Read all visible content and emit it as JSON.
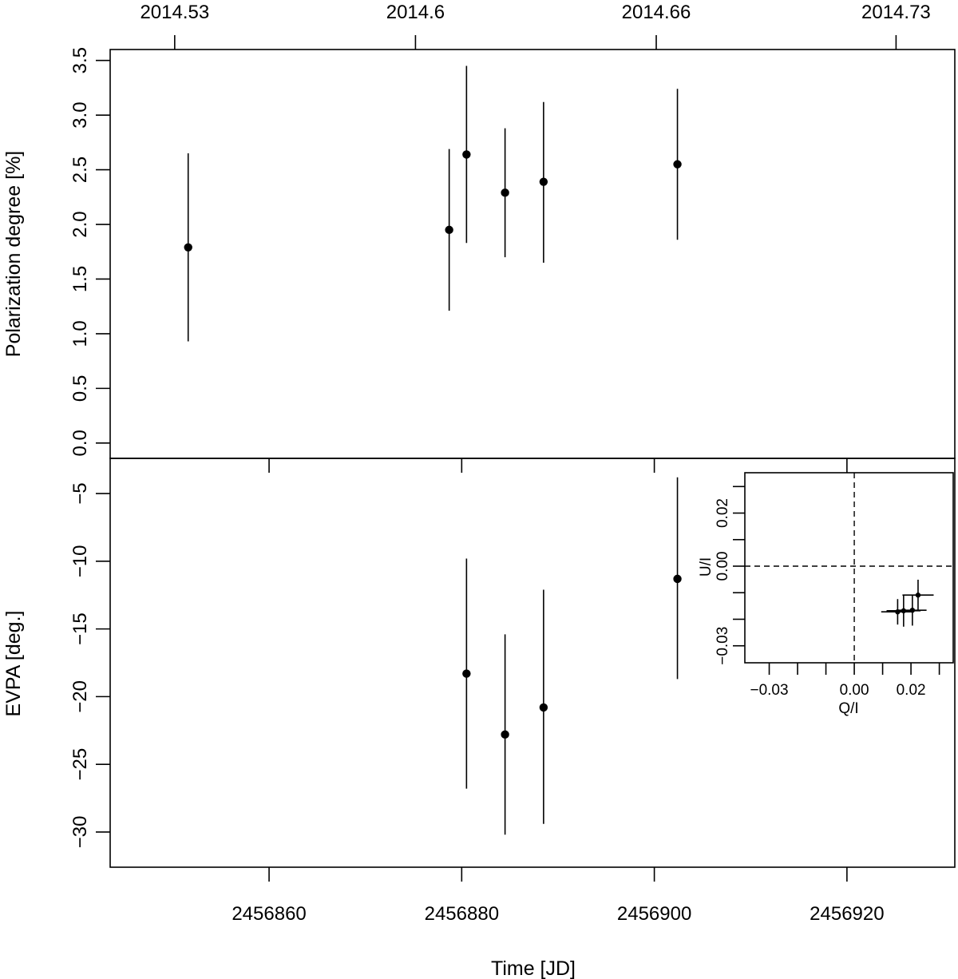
{
  "chart_data": [
    {
      "type": "scatter",
      "panel": "top",
      "ylabel": "Polarization degree [%]",
      "xlabel_top": "",
      "xlim_jd": [
        2456843.5,
        2456931.2
      ],
      "ylim": [
        -0.14,
        3.6
      ],
      "yticks": [
        "0.0",
        "0.5",
        "1.0",
        "1.5",
        "2.0",
        "2.5",
        "3.0",
        "3.5"
      ],
      "top_axis_ticks": [
        {
          "label": "2014.53",
          "jd": 2456850.2
        },
        {
          "label": "2014.6",
          "jd": 2456875.2
        },
        {
          "label": "2014.66",
          "jd": 2456900.2
        },
        {
          "label": "2014.73",
          "jd": 2456925.1
        }
      ],
      "points": [
        {
          "x": 2456851.6,
          "y": 1.79,
          "ylo": 0.93,
          "yhi": 2.65
        },
        {
          "x": 2456878.7,
          "y": 1.95,
          "ylo": 1.21,
          "yhi": 2.69
        },
        {
          "x": 2456880.5,
          "y": 2.64,
          "ylo": 1.83,
          "yhi": 3.45
        },
        {
          "x": 2456884.5,
          "y": 2.29,
          "ylo": 1.7,
          "yhi": 2.88
        },
        {
          "x": 2456888.5,
          "y": 2.39,
          "ylo": 1.65,
          "yhi": 3.12
        },
        {
          "x": 2456902.4,
          "y": 2.55,
          "ylo": 1.86,
          "yhi": 3.24
        }
      ]
    },
    {
      "type": "scatter",
      "panel": "bottom",
      "ylabel": "EVPA [deg.]",
      "xlabel": "Time [JD]",
      "xlim_jd": [
        2456843.5,
        2456931.2
      ],
      "ylim": [
        -32.6,
        -2.4
      ],
      "yticks": [
        "−30",
        "−25",
        "−20",
        "−15",
        "−10",
        "−5"
      ],
      "xticks": [
        "2456860",
        "2456880",
        "2456900",
        "2456920"
      ],
      "points": [
        {
          "x": 2456880.5,
          "y": -18.3,
          "ylo": -26.8,
          "yhi": -9.8
        },
        {
          "x": 2456884.5,
          "y": -22.8,
          "ylo": -30.2,
          "yhi": -15.4
        },
        {
          "x": 2456888.5,
          "y": -20.8,
          "ylo": -29.4,
          "yhi": -12.1
        },
        {
          "x": 2456902.4,
          "y": -11.3,
          "ylo": -18.7,
          "yhi": -3.8
        }
      ]
    },
    {
      "type": "scatter",
      "panel": "inset",
      "xlabel": "Q/I",
      "ylabel": "U/I",
      "xlim": [
        -0.0386,
        0.0349
      ],
      "ylim": [
        -0.0364,
        0.0352
      ],
      "xticks": [
        "−0.03",
        "0.00",
        "0.02"
      ],
      "yticks": [
        "−0.03",
        "0.00",
        "0.02"
      ],
      "reference_lines": {
        "x": 0,
        "y": 0,
        "style": "dashed"
      },
      "points": [
        {
          "x": 0.0153,
          "y": -0.0172,
          "xerr": 0.0058,
          "yerr": 0.0048
        },
        {
          "x": 0.0174,
          "y": -0.0168,
          "xerr": 0.006,
          "yerr": 0.006
        },
        {
          "x": 0.0205,
          "y": -0.0166,
          "xerr": 0.005,
          "yerr": 0.0058
        },
        {
          "x": 0.0225,
          "y": -0.0109,
          "xerr": 0.0055,
          "yerr": 0.0058
        }
      ]
    }
  ]
}
